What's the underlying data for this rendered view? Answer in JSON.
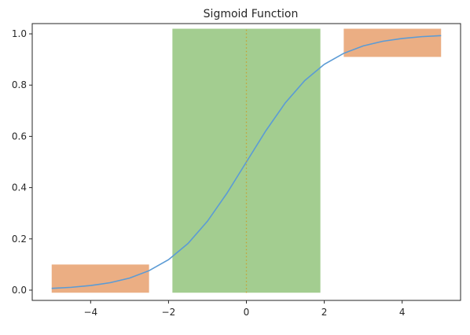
{
  "chart_data": {
    "type": "line",
    "title": "Sigmoid Function",
    "xlabel": "",
    "ylabel": "",
    "xlim": [
      -5.5,
      5.5
    ],
    "ylim": [
      -0.04,
      1.04
    ],
    "grid": false,
    "function": "sigmoid",
    "series": [
      {
        "color": "#5b9bd5",
        "x": [
          -5,
          -4.5,
          -4,
          -3.5,
          -3,
          -2.5,
          -2,
          -1.5,
          -1,
          -0.5,
          0,
          0.5,
          1,
          1.5,
          2,
          2.5,
          3,
          3.5,
          4,
          4.5,
          5
        ],
        "y": [
          0.007,
          0.011,
          0.018,
          0.029,
          0.047,
          0.076,
          0.119,
          0.182,
          0.269,
          0.378,
          0.5,
          0.622,
          0.731,
          0.818,
          0.881,
          0.924,
          0.953,
          0.971,
          0.982,
          0.989,
          0.993
        ]
      }
    ],
    "regions": [
      {
        "x0": -5,
        "x1": -2.5,
        "y0": -0.01,
        "y1": 0.1,
        "color": "#e8a06d"
      },
      {
        "x0": -1.9,
        "x1": 1.9,
        "y0": -0.01,
        "y1": 1.02,
        "color": "#93c47d"
      },
      {
        "x0": 2.5,
        "x1": 5,
        "y0": 0.91,
        "y1": 1.02,
        "color": "#e8a06d"
      }
    ],
    "vline": {
      "x": 0,
      "y0": -0.01,
      "y1": 1.02,
      "color": "#c8a030",
      "style": "dotted"
    },
    "xticks": [
      {
        "value": -4,
        "label": "−4"
      },
      {
        "value": -2,
        "label": "−2"
      },
      {
        "value": 0,
        "label": "0"
      },
      {
        "value": 2,
        "label": "2"
      },
      {
        "value": 4,
        "label": "4"
      }
    ],
    "yticks": [
      {
        "value": 0.0,
        "label": "0.0"
      },
      {
        "value": 0.2,
        "label": "0.2"
      },
      {
        "value": 0.4,
        "label": "0.4"
      },
      {
        "value": 0.6,
        "label": "0.6"
      },
      {
        "value": 0.8,
        "label": "0.8"
      },
      {
        "value": 1.0,
        "label": "1.0"
      }
    ]
  }
}
